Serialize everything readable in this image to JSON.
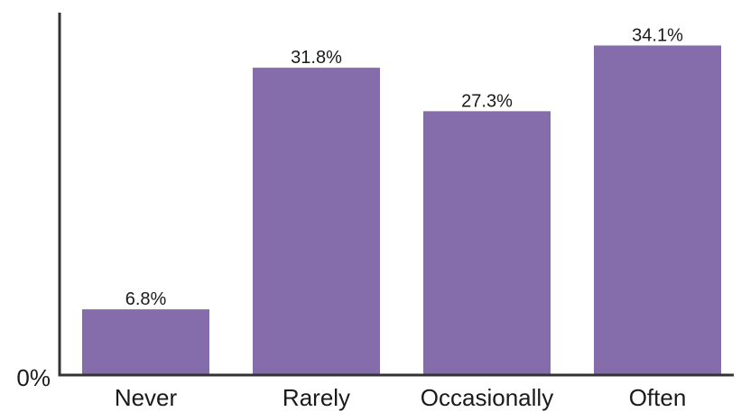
{
  "chart_data": {
    "type": "bar",
    "categories": [
      "Never",
      "Rarely",
      "Occasionally",
      "Often"
    ],
    "values": [
      6.8,
      31.8,
      27.3,
      34.1
    ],
    "data_labels": [
      "6.8%",
      "31.8%",
      "27.3%",
      "34.1%"
    ],
    "title": "",
    "xlabel": "",
    "ylabel": "",
    "ylim": [
      0,
      37.5
    ],
    "y_ticks": [
      {
        "value": 0,
        "label": "0%"
      }
    ],
    "grid": false,
    "legend": "none",
    "bar_color": "#856cab",
    "axis_color": "#333333"
  }
}
